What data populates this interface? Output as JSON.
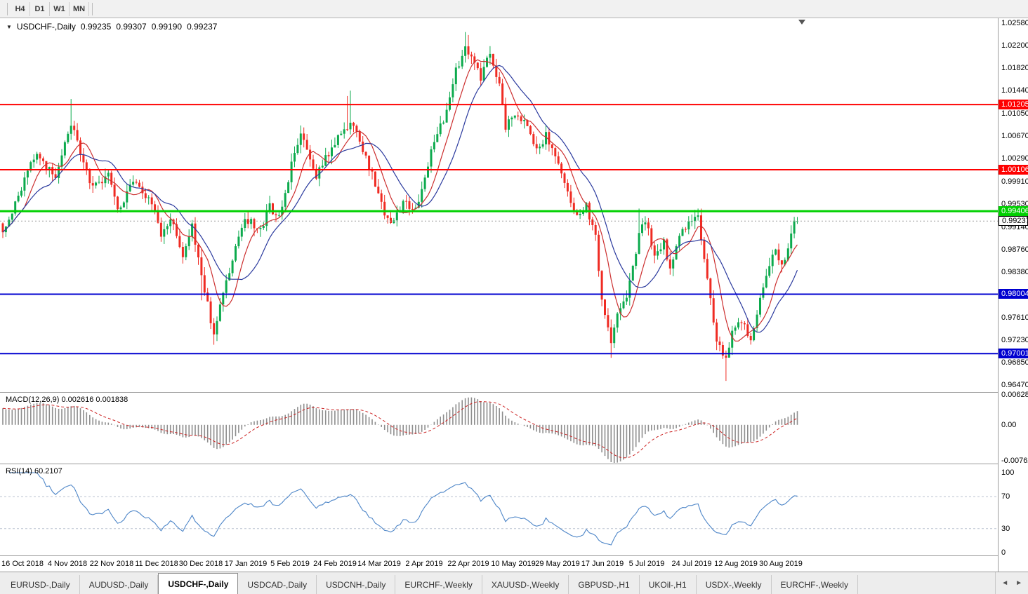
{
  "icons": {
    "collapse": "▼",
    "shift_marker": "▼",
    "tab_scroll_left": "◄",
    "tab_scroll_right": "►"
  },
  "toolbar": {
    "timeframes": [
      "H4",
      "D1",
      "W1",
      "MN"
    ]
  },
  "chart_header": {
    "symbol": "USDCHF-,Daily",
    "open": "0.99235",
    "high": "0.99307",
    "low": "0.99190",
    "close": "0.99237"
  },
  "macd_panel": {
    "header": "MACD(12,26,9) 0.002616 0.001838"
  },
  "rsi_panel": {
    "header": "RSI(14) 60.2107"
  },
  "tabs": [
    {
      "label": "EURUSD-,Daily",
      "active": false
    },
    {
      "label": "AUDUSD-,Daily",
      "active": false
    },
    {
      "label": "USDCHF-,Daily",
      "active": true
    },
    {
      "label": "USDCAD-,Daily",
      "active": false
    },
    {
      "label": "USDCNH-,Daily",
      "active": false
    },
    {
      "label": "EURCHF-,Weekly",
      "active": false
    },
    {
      "label": "XAUUSD-,Weekly",
      "active": false
    },
    {
      "label": "GBPUSD-,H1",
      "active": false
    },
    {
      "label": "UKOil-,H1",
      "active": false
    },
    {
      "label": "USDX-,Weekly",
      "active": false
    },
    {
      "label": "EURCHF-,Weekly",
      "active": false
    }
  ],
  "chart_data": {
    "type": "candlestick",
    "symbol": "USDCHF-",
    "timeframe": "Daily",
    "title": "USDCHF-,Daily",
    "last_bar": {
      "o": 0.99235,
      "h": 0.99307,
      "l": 0.9919,
      "c": 0.99237
    },
    "current_price": 0.99237,
    "dates": [
      "16 Oct 2018",
      "4 Nov 2018",
      "22 Nov 2018",
      "11 Dec 2018",
      "30 Dec 2018",
      "17 Jan 2019",
      "5 Feb 2019",
      "24 Feb 2019",
      "14 Mar 2019",
      "2 Apr 2019",
      "22 Apr 2019",
      "10 May 2019",
      "29 May 2019",
      "17 Jun 2019",
      "5 Jul 2019",
      "24 Jul 2019",
      "12 Aug 2019",
      "30 Aug 2019"
    ],
    "price_axis": {
      "min": 0.96352,
      "max": 1.02663,
      "ticks": [
        1.0258,
        1.022,
        1.0182,
        1.0144,
        1.0105,
        1.0067,
        1.0029,
        0.9991,
        0.9953,
        0.9914,
        0.9876,
        0.9838,
        0.9761,
        0.9723,
        0.9685,
        0.9647
      ]
    },
    "levels": [
      {
        "price": 1.01205,
        "color": "#ff0000",
        "width": 2,
        "kind": "resistance"
      },
      {
        "price": 1.00106,
        "color": "#ff0000",
        "width": 2,
        "kind": "resistance"
      },
      {
        "price": 0.99406,
        "color": "#00d000",
        "width": 3,
        "kind": "resistance"
      },
      {
        "price": 0.98004,
        "color": "#0000d0",
        "width": 2,
        "kind": "support"
      },
      {
        "price": 0.97001,
        "color": "#0000d0",
        "width": 2,
        "kind": "support"
      }
    ],
    "series": {
      "spacing": 4.42,
      "x_start": 4,
      "seed": 11,
      "noise": 0.0013,
      "wick": 0.0014,
      "close_anchors": [
        [
          0,
          0.9905
        ],
        [
          5,
          0.9968
        ],
        [
          11,
          1.0042
        ],
        [
          14,
          1.0015
        ],
        [
          17,
          0.9998
        ],
        [
          22,
          1.0088
        ],
        [
          25,
          1.004
        ],
        [
          29,
          0.9978
        ],
        [
          34,
          1.0002
        ],
        [
          37,
          0.9941
        ],
        [
          42,
          0.999
        ],
        [
          48,
          0.9958
        ],
        [
          51,
          0.9902
        ],
        [
          54,
          0.993
        ],
        [
          58,
          0.9868
        ],
        [
          61,
          0.9918
        ],
        [
          64,
          0.9832
        ],
        [
          68,
          0.9732
        ],
        [
          71,
          0.98
        ],
        [
          75,
          0.988
        ],
        [
          78,
          0.993
        ],
        [
          83,
          0.9908
        ],
        [
          86,
          0.9948
        ],
        [
          89,
          0.9928
        ],
        [
          93,
          1.0018
        ],
        [
          96,
          1.0068
        ],
        [
          98,
          1.0042
        ],
        [
          101,
          1.0
        ],
        [
          104,
          1.003
        ],
        [
          107,
          1.0058
        ],
        [
          111,
          1.0078
        ],
        [
          113,
          1.009
        ],
        [
          117,
          1.0032
        ],
        [
          120,
          0.9988
        ],
        [
          123,
          0.9932
        ],
        [
          126,
          0.992
        ],
        [
          129,
          0.9958
        ],
        [
          133,
          0.994
        ],
        [
          136,
          1.0
        ],
        [
          139,
          1.0058
        ],
        [
          143,
          1.0108
        ],
        [
          146,
          1.0178
        ],
        [
          149,
          1.0215
        ],
        [
          152,
          1.0188
        ],
        [
          154,
          1.0164
        ],
        [
          157,
          1.0208
        ],
        [
          160,
          1.015
        ],
        [
          162,
          1.0082
        ],
        [
          165,
          1.0108
        ],
        [
          169,
          1.0088
        ],
        [
          172,
          1.0042
        ],
        [
          175,
          1.0068
        ],
        [
          179,
          1.0018
        ],
        [
          182,
          0.9968
        ],
        [
          185,
          0.993
        ],
        [
          188,
          0.995
        ],
        [
          191,
          0.9898
        ],
        [
          193,
          0.979
        ],
        [
          196,
          0.9722
        ],
        [
          198,
          0.9768
        ],
        [
          201,
          0.98
        ],
        [
          205,
          0.9898
        ],
        [
          207,
          0.9928
        ],
        [
          210,
          0.9868
        ],
        [
          213,
          0.9888
        ],
        [
          215,
          0.984
        ],
        [
          218,
          0.9898
        ],
        [
          221,
          0.9918
        ],
        [
          224,
          0.9928
        ],
        [
          227,
          0.983
        ],
        [
          230,
          0.9722
        ],
        [
          233,
          0.9692
        ],
        [
          235,
          0.9738
        ],
        [
          238,
          0.9758
        ],
        [
          241,
          0.972
        ],
        [
          244,
          0.9788
        ],
        [
          247,
          0.9848
        ],
        [
          249,
          0.9878
        ],
        [
          251,
          0.985
        ],
        [
          253,
          0.9876
        ],
        [
          255,
          0.9922
        ],
        [
          256,
          0.99237
        ]
      ],
      "wick_overrides": [
        [
          22,
          "h",
          1.013
        ],
        [
          111,
          "h",
          1.0135
        ],
        [
          112,
          "h",
          1.0144
        ],
        [
          149,
          "h",
          1.0243
        ],
        [
          150,
          "h",
          1.0238
        ],
        [
          205,
          "h",
          0.9945
        ],
        [
          224,
          "h",
          0.9945
        ],
        [
          255,
          "h",
          0.9931
        ],
        [
          64,
          "l",
          0.979
        ],
        [
          68,
          "l",
          0.9715
        ],
        [
          196,
          "l",
          0.9693
        ],
        [
          230,
          "l",
          0.9706
        ],
        [
          233,
          "l",
          0.9654
        ]
      ]
    },
    "moving_averages": [
      {
        "period": 8,
        "color": "#cc2f2f"
      },
      {
        "period": 16,
        "color": "#2b3a9e"
      }
    ],
    "macd": {
      "fast": 12,
      "slow": 26,
      "signal": 9,
      "value": 0.002616,
      "signal_value": 0.001838,
      "axis_max": 0.0068,
      "axis_min": -0.0082,
      "slow_seed_offset": -0.0035,
      "axis_ticks": [
        {
          "v": 0.006286,
          "label": "0.006286"
        },
        {
          "v": 0,
          "label": "0.00"
        },
        {
          "v": -0.00762,
          "label": "-0.00762"
        }
      ],
      "hist_color": "#8e8e8e",
      "line_color": "#cc2222"
    },
    "rsi": {
      "period": 14,
      "value": 60.2107,
      "axis_ticks": [
        100,
        70,
        30,
        0
      ],
      "guide_levels": [
        70,
        30
      ],
      "color": "#4e86c8"
    },
    "colors": {
      "up": "#0caa4d",
      "down": "#ef2b23",
      "current_line": "#a0a0a0"
    }
  }
}
